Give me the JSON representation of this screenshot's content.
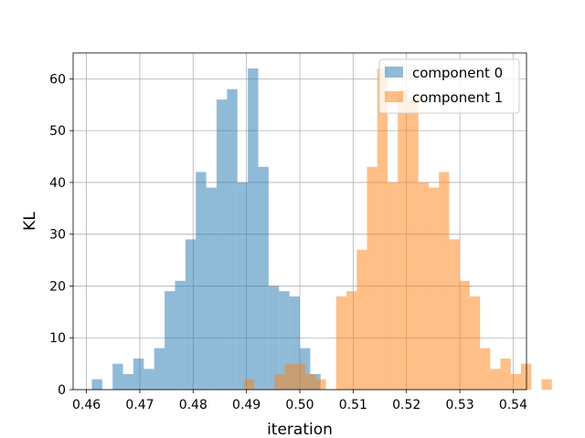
{
  "chart_data": {
    "type": "bar",
    "title": "",
    "xlabel": "iteration",
    "ylabel": "KL",
    "xlim": [
      0.4575,
      0.5425
    ],
    "ylim": [
      0,
      65
    ],
    "xticks": [
      "0.46",
      "0.47",
      "0.48",
      "0.49",
      "0.50",
      "0.51",
      "0.52",
      "0.53",
      "0.54"
    ],
    "xtick_values": [
      0.46,
      0.47,
      0.48,
      0.49,
      0.5,
      0.51,
      0.52,
      0.53,
      0.54
    ],
    "yticks": [
      "0",
      "10",
      "20",
      "30",
      "40",
      "50",
      "60"
    ],
    "ytick_values": [
      0,
      10,
      20,
      30,
      40,
      50,
      60
    ],
    "grid": true,
    "legend_position": "top-right",
    "series": [
      {
        "name": "component 0",
        "color": "#1f77b4",
        "alpha": 0.5,
        "bin_start": 0.461,
        "bin_width": 0.00195,
        "values": [
          2,
          0,
          5,
          3,
          6,
          4,
          8,
          19,
          21,
          29,
          42,
          39,
          56,
          58,
          40,
          62,
          43,
          20,
          19,
          18,
          8,
          3
        ]
      },
      {
        "name": "component 1",
        "color": "#ff7f0e",
        "alpha": 0.5,
        "bin_start": 0.4895,
        "bin_width": 0.001925,
        "values": [
          2,
          0,
          0,
          3,
          5,
          5,
          3,
          2,
          0,
          18,
          19,
          27,
          43,
          62,
          40,
          58,
          56,
          40,
          39,
          42,
          29,
          21,
          18,
          8,
          4,
          6,
          3,
          5,
          0,
          2
        ]
      }
    ]
  }
}
